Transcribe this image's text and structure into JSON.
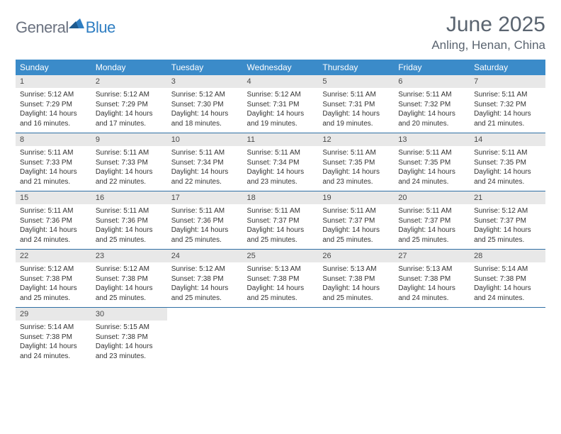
{
  "logo": {
    "text1": "General",
    "text2": "Blue"
  },
  "header": {
    "title": "June 2025",
    "location": "Anling, Henan, China"
  },
  "colors": {
    "header_bg": "#3b8bc9",
    "header_text": "#ffffff",
    "daynum_bg": "#e8e8e8",
    "border_line": "#2f6fa5",
    "text_gray": "#5a6470",
    "logo_gray": "#6b7280",
    "logo_blue": "#2f7ec2"
  },
  "calendar": {
    "type": "table",
    "day_names": [
      "Sunday",
      "Monday",
      "Tuesday",
      "Wednesday",
      "Thursday",
      "Friday",
      "Saturday"
    ],
    "weeks": [
      [
        {
          "d": "1",
          "sr": "5:12 AM",
          "ss": "7:29 PM",
          "dl": "14 hours and 16 minutes."
        },
        {
          "d": "2",
          "sr": "5:12 AM",
          "ss": "7:29 PM",
          "dl": "14 hours and 17 minutes."
        },
        {
          "d": "3",
          "sr": "5:12 AM",
          "ss": "7:30 PM",
          "dl": "14 hours and 18 minutes."
        },
        {
          "d": "4",
          "sr": "5:12 AM",
          "ss": "7:31 PM",
          "dl": "14 hours and 19 minutes."
        },
        {
          "d": "5",
          "sr": "5:11 AM",
          "ss": "7:31 PM",
          "dl": "14 hours and 19 minutes."
        },
        {
          "d": "6",
          "sr": "5:11 AM",
          "ss": "7:32 PM",
          "dl": "14 hours and 20 minutes."
        },
        {
          "d": "7",
          "sr": "5:11 AM",
          "ss": "7:32 PM",
          "dl": "14 hours and 21 minutes."
        }
      ],
      [
        {
          "d": "8",
          "sr": "5:11 AM",
          "ss": "7:33 PM",
          "dl": "14 hours and 21 minutes."
        },
        {
          "d": "9",
          "sr": "5:11 AM",
          "ss": "7:33 PM",
          "dl": "14 hours and 22 minutes."
        },
        {
          "d": "10",
          "sr": "5:11 AM",
          "ss": "7:34 PM",
          "dl": "14 hours and 22 minutes."
        },
        {
          "d": "11",
          "sr": "5:11 AM",
          "ss": "7:34 PM",
          "dl": "14 hours and 23 minutes."
        },
        {
          "d": "12",
          "sr": "5:11 AM",
          "ss": "7:35 PM",
          "dl": "14 hours and 23 minutes."
        },
        {
          "d": "13",
          "sr": "5:11 AM",
          "ss": "7:35 PM",
          "dl": "14 hours and 24 minutes."
        },
        {
          "d": "14",
          "sr": "5:11 AM",
          "ss": "7:35 PM",
          "dl": "14 hours and 24 minutes."
        }
      ],
      [
        {
          "d": "15",
          "sr": "5:11 AM",
          "ss": "7:36 PM",
          "dl": "14 hours and 24 minutes."
        },
        {
          "d": "16",
          "sr": "5:11 AM",
          "ss": "7:36 PM",
          "dl": "14 hours and 25 minutes."
        },
        {
          "d": "17",
          "sr": "5:11 AM",
          "ss": "7:36 PM",
          "dl": "14 hours and 25 minutes."
        },
        {
          "d": "18",
          "sr": "5:11 AM",
          "ss": "7:37 PM",
          "dl": "14 hours and 25 minutes."
        },
        {
          "d": "19",
          "sr": "5:11 AM",
          "ss": "7:37 PM",
          "dl": "14 hours and 25 minutes."
        },
        {
          "d": "20",
          "sr": "5:11 AM",
          "ss": "7:37 PM",
          "dl": "14 hours and 25 minutes."
        },
        {
          "d": "21",
          "sr": "5:12 AM",
          "ss": "7:37 PM",
          "dl": "14 hours and 25 minutes."
        }
      ],
      [
        {
          "d": "22",
          "sr": "5:12 AM",
          "ss": "7:38 PM",
          "dl": "14 hours and 25 minutes."
        },
        {
          "d": "23",
          "sr": "5:12 AM",
          "ss": "7:38 PM",
          "dl": "14 hours and 25 minutes."
        },
        {
          "d": "24",
          "sr": "5:12 AM",
          "ss": "7:38 PM",
          "dl": "14 hours and 25 minutes."
        },
        {
          "d": "25",
          "sr": "5:13 AM",
          "ss": "7:38 PM",
          "dl": "14 hours and 25 minutes."
        },
        {
          "d": "26",
          "sr": "5:13 AM",
          "ss": "7:38 PM",
          "dl": "14 hours and 25 minutes."
        },
        {
          "d": "27",
          "sr": "5:13 AM",
          "ss": "7:38 PM",
          "dl": "14 hours and 24 minutes."
        },
        {
          "d": "28",
          "sr": "5:14 AM",
          "ss": "7:38 PM",
          "dl": "14 hours and 24 minutes."
        }
      ],
      [
        {
          "d": "29",
          "sr": "5:14 AM",
          "ss": "7:38 PM",
          "dl": "14 hours and 24 minutes."
        },
        {
          "d": "30",
          "sr": "5:15 AM",
          "ss": "7:38 PM",
          "dl": "14 hours and 23 minutes."
        },
        null,
        null,
        null,
        null,
        null
      ]
    ]
  },
  "labels": {
    "sunrise": "Sunrise: ",
    "sunset": "Sunset: ",
    "daylight": "Daylight: "
  }
}
